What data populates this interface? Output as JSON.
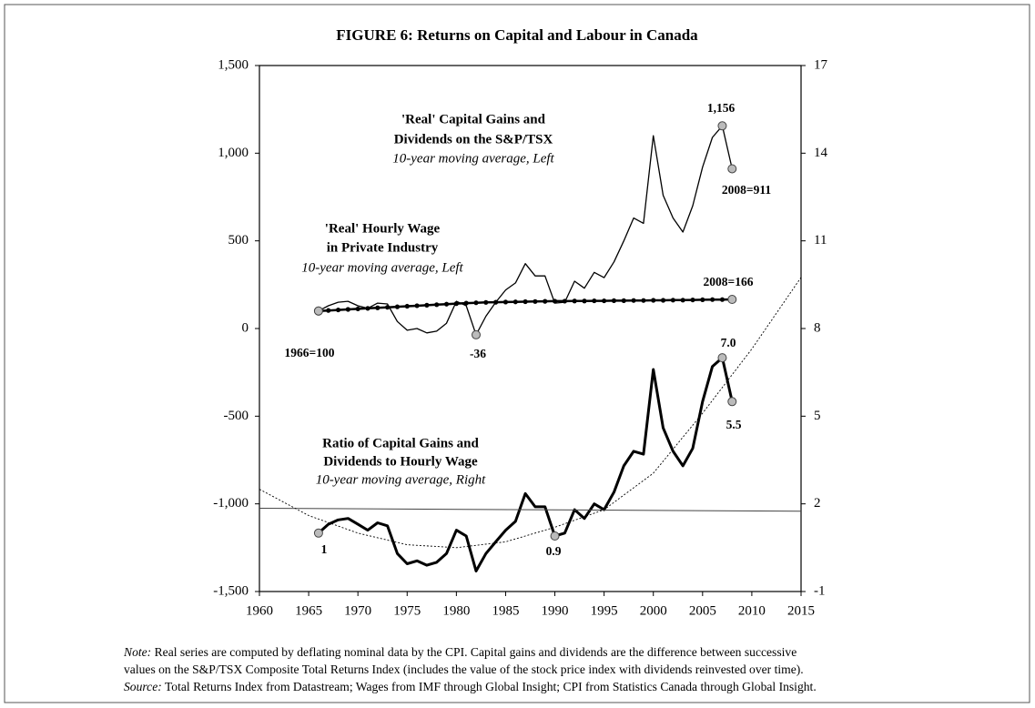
{
  "chart_data": {
    "type": "line",
    "title": "FIGURE 6:  Returns on Capital and Labour in Canada",
    "xlim": [
      1960,
      2015
    ],
    "xticks": [
      1960,
      1965,
      1970,
      1975,
      1980,
      1985,
      1990,
      1995,
      2000,
      2005,
      2010,
      2015
    ],
    "ylim": [
      -1500,
      1500
    ],
    "yticks": [
      {
        "value": -1500,
        "label": "-1,500"
      },
      {
        "value": -1000,
        "label": "-1,000"
      },
      -500,
      0,
      500,
      {
        "value": 1000,
        "label": "1,000"
      },
      {
        "value": 1500,
        "label": "1,500"
      }
    ],
    "y2lim": [
      -1,
      17
    ],
    "y2ticks": [
      -1,
      2,
      5,
      8,
      11,
      14,
      17
    ],
    "series": [
      {
        "color": "#000000",
        "width": 1.3,
        "axis": "y",
        "x": [
          1966,
          1967,
          1968,
          1969,
          1970,
          1971,
          1972,
          1973,
          1974,
          1975,
          1976,
          1977,
          1978,
          1979,
          1980,
          1981,
          1982,
          1983,
          1984,
          1985,
          1986,
          1987,
          1988,
          1989,
          1990,
          1991,
          1992,
          1993,
          1994,
          1995,
          1996,
          1997,
          1998,
          1999,
          2000,
          2001,
          2002,
          2003,
          2004,
          2005,
          2006,
          2007,
          2008
        ],
        "values": [
          100,
          130,
          150,
          155,
          130,
          115,
          145,
          140,
          40,
          -10,
          0,
          -25,
          -15,
          30,
          155,
          130,
          -36,
          70,
          150,
          220,
          260,
          370,
          300,
          300,
          145,
          150,
          270,
          230,
          320,
          290,
          380,
          500,
          630,
          600,
          1100,
          760,
          630,
          550,
          700,
          920,
          1090,
          1156,
          911
        ]
      },
      {
        "color": "#000000",
        "width": 2.5,
        "axis": "y",
        "dots": true,
        "x": [
          1966,
          1967,
          1968,
          1969,
          1970,
          1971,
          1972,
          1973,
          1974,
          1975,
          1976,
          1977,
          1978,
          1979,
          1980,
          1981,
          1982,
          1983,
          1984,
          1985,
          1986,
          1987,
          1988,
          1989,
          1990,
          1991,
          1992,
          1993,
          1994,
          1995,
          1996,
          1997,
          1998,
          1999,
          2000,
          2001,
          2002,
          2003,
          2004,
          2005,
          2006,
          2007,
          2008
        ],
        "values": [
          100,
          103,
          106,
          109,
          112,
          115,
          118,
          121,
          124,
          127,
          130,
          133,
          136,
          139,
          142,
          145,
          147,
          149,
          150,
          151,
          152,
          153,
          154,
          155,
          156,
          156,
          157,
          157,
          158,
          158,
          159,
          159,
          160,
          160,
          161,
          161,
          162,
          162,
          163,
          164,
          165,
          165,
          166
        ]
      },
      {
        "color": "#000000",
        "width": 3,
        "axis": "y2",
        "x": [
          1966,
          1967,
          1968,
          1969,
          1970,
          1971,
          1972,
          1973,
          1974,
          1975,
          1976,
          1977,
          1978,
          1979,
          1980,
          1981,
          1982,
          1983,
          1984,
          1985,
          1986,
          1987,
          1988,
          1989,
          1990,
          1991,
          1992,
          1993,
          1994,
          1995,
          1996,
          1997,
          1998,
          1999,
          2000,
          2001,
          2002,
          2003,
          2004,
          2005,
          2006,
          2007,
          2008
        ],
        "values": [
          1,
          1.3,
          1.45,
          1.5,
          1.3,
          1.1,
          1.35,
          1.25,
          0.3,
          -0.05,
          0.05,
          -0.1,
          0,
          0.3,
          1.1,
          0.9,
          -0.3,
          0.3,
          0.7,
          1.1,
          1.4,
          2.35,
          1.9,
          1.9,
          0.9,
          1.0,
          1.8,
          1.5,
          2.0,
          1.8,
          2.4,
          3.3,
          3.8,
          3.7,
          6.6,
          4.6,
          3.8,
          3.3,
          3.9,
          5.5,
          6.7,
          7.0,
          5.5
        ]
      },
      {
        "color": "#444444",
        "width": 1,
        "axis": "y2",
        "x": [
          1960,
          2015
        ],
        "values": [
          1.85,
          1.75
        ]
      },
      {
        "color": "#000000",
        "width": 0.9,
        "axis": "y2",
        "dash": "dotted",
        "x": [
          1960,
          1965,
          1970,
          1975,
          1980,
          1985,
          1990,
          1995,
          2000,
          2005,
          2010,
          2015
        ],
        "values": [
          2.5,
          1.6,
          1.0,
          0.6,
          0.5,
          0.7,
          1.2,
          1.8,
          3.05,
          5.1,
          7.3,
          9.75
        ]
      }
    ],
    "annotations": [
      "'Real' Capital Gains and",
      "Dividends on the S&P/TSX",
      "10-year moving average, Left",
      "'Real' Hourly Wage",
      "in Private Industry",
      "10-year moving average, Left",
      "Ratio of Capital Gains and",
      "Dividends to Hourly Wage",
      "10-year moving average, Right",
      "1,156",
      "2008=911",
      "2008=166",
      "1966=100",
      "-36",
      "7.0",
      "5.5",
      "1",
      "0.9"
    ],
    "note_label": "Note:",
    "note_lines": [
      "Real series are computed by deflating nominal data by the CPI. Capital gains and dividends are the difference between successive",
      "values on the S&P/TSX Composite Total Returns Index (includes the value of the stock price index with dividends reinvested over time)."
    ],
    "source_label": "Source:",
    "source_text": "Total Returns Index from Datastream; Wages from IMF through Global Insight; CPI from Statistics Canada through Global Insight."
  }
}
